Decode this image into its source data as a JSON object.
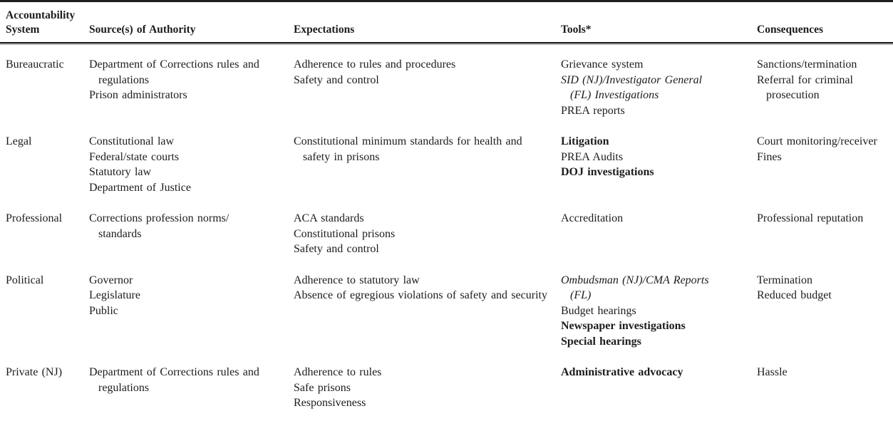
{
  "table": {
    "columns": [
      "Accountability System",
      "Source(s) of Authority",
      "Expectations",
      "Tools*",
      "Consequences"
    ],
    "rows": [
      {
        "system": "Bureaucratic",
        "sources": [
          {
            "text": "Department of Corrections rules and regulations",
            "style": "normal"
          },
          {
            "text": "Prison administrators",
            "style": "normal"
          }
        ],
        "expectations": [
          {
            "text": "Adherence to rules and procedures",
            "style": "normal"
          },
          {
            "text": "Safety and control",
            "style": "normal"
          }
        ],
        "tools": [
          {
            "text": "Grievance system",
            "style": "normal"
          },
          {
            "text": "SID (NJ)/Investigator General (FL) Investigations",
            "style": "italic"
          },
          {
            "text": "PREA reports",
            "style": "normal"
          }
        ],
        "consequences": [
          {
            "text": "Sanctions/termination",
            "style": "normal"
          },
          {
            "text": "Referral for criminal prosecution",
            "style": "normal"
          }
        ]
      },
      {
        "system": "Legal",
        "sources": [
          {
            "text": "Constitutional law",
            "style": "normal"
          },
          {
            "text": "Federal/state courts",
            "style": "normal"
          },
          {
            "text": "Statutory law",
            "style": "normal"
          },
          {
            "text": "Department of Justice",
            "style": "normal"
          }
        ],
        "expectations": [
          {
            "text": "Constitutional minimum standards for health and safety in prisons",
            "style": "normal"
          }
        ],
        "tools": [
          {
            "text": "Litigation",
            "style": "bold"
          },
          {
            "text": "PREA Audits",
            "style": "normal"
          },
          {
            "text": "DOJ investigations",
            "style": "bold"
          }
        ],
        "consequences": [
          {
            "text": "Court monitoring/​receiver",
            "style": "normal"
          },
          {
            "text": "Fines",
            "style": "normal"
          }
        ]
      },
      {
        "system": "Professional",
        "sources": [
          {
            "text": "Corrections profession norms/​standards",
            "style": "normal"
          }
        ],
        "expectations": [
          {
            "text": "ACA standards",
            "style": "normal"
          },
          {
            "text": "Constitutional prisons",
            "style": "normal"
          },
          {
            "text": "Safety and control",
            "style": "normal"
          }
        ],
        "tools": [
          {
            "text": "Accreditation",
            "style": "normal"
          }
        ],
        "consequences": [
          {
            "text": "Professional reputation",
            "style": "normal"
          }
        ]
      },
      {
        "system": "Political",
        "sources": [
          {
            "text": "Governor",
            "style": "normal"
          },
          {
            "text": "Legislature",
            "style": "normal"
          },
          {
            "text": "Public",
            "style": "normal"
          }
        ],
        "expectations": [
          {
            "text": "Adherence to statutory law",
            "style": "normal"
          },
          {
            "text": "Absence of egregious violations of safety and security",
            "style": "normal"
          }
        ],
        "tools": [
          {
            "text": "Ombudsman (NJ)/CMA Reports (FL)",
            "style": "italic"
          },
          {
            "text": "Budget hearings",
            "style": "normal"
          },
          {
            "text": "Newspaper investigations",
            "style": "bold"
          },
          {
            "text": "Special hearings",
            "style": "bold"
          }
        ],
        "consequences": [
          {
            "text": "Termination",
            "style": "normal"
          },
          {
            "text": "Reduced budget",
            "style": "normal"
          }
        ]
      },
      {
        "system": "Private (NJ)",
        "sources": [
          {
            "text": "Department of Corrections rules and regulations",
            "style": "normal"
          }
        ],
        "expectations": [
          {
            "text": "Adherence to rules",
            "style": "normal"
          },
          {
            "text": "Safe prisons",
            "style": "normal"
          },
          {
            "text": "Responsiveness",
            "style": "normal"
          }
        ],
        "tools": [
          {
            "text": "Administrative advocacy",
            "style": "bold"
          }
        ],
        "consequences": [
          {
            "text": "Hassle",
            "style": "normal"
          }
        ]
      }
    ]
  }
}
